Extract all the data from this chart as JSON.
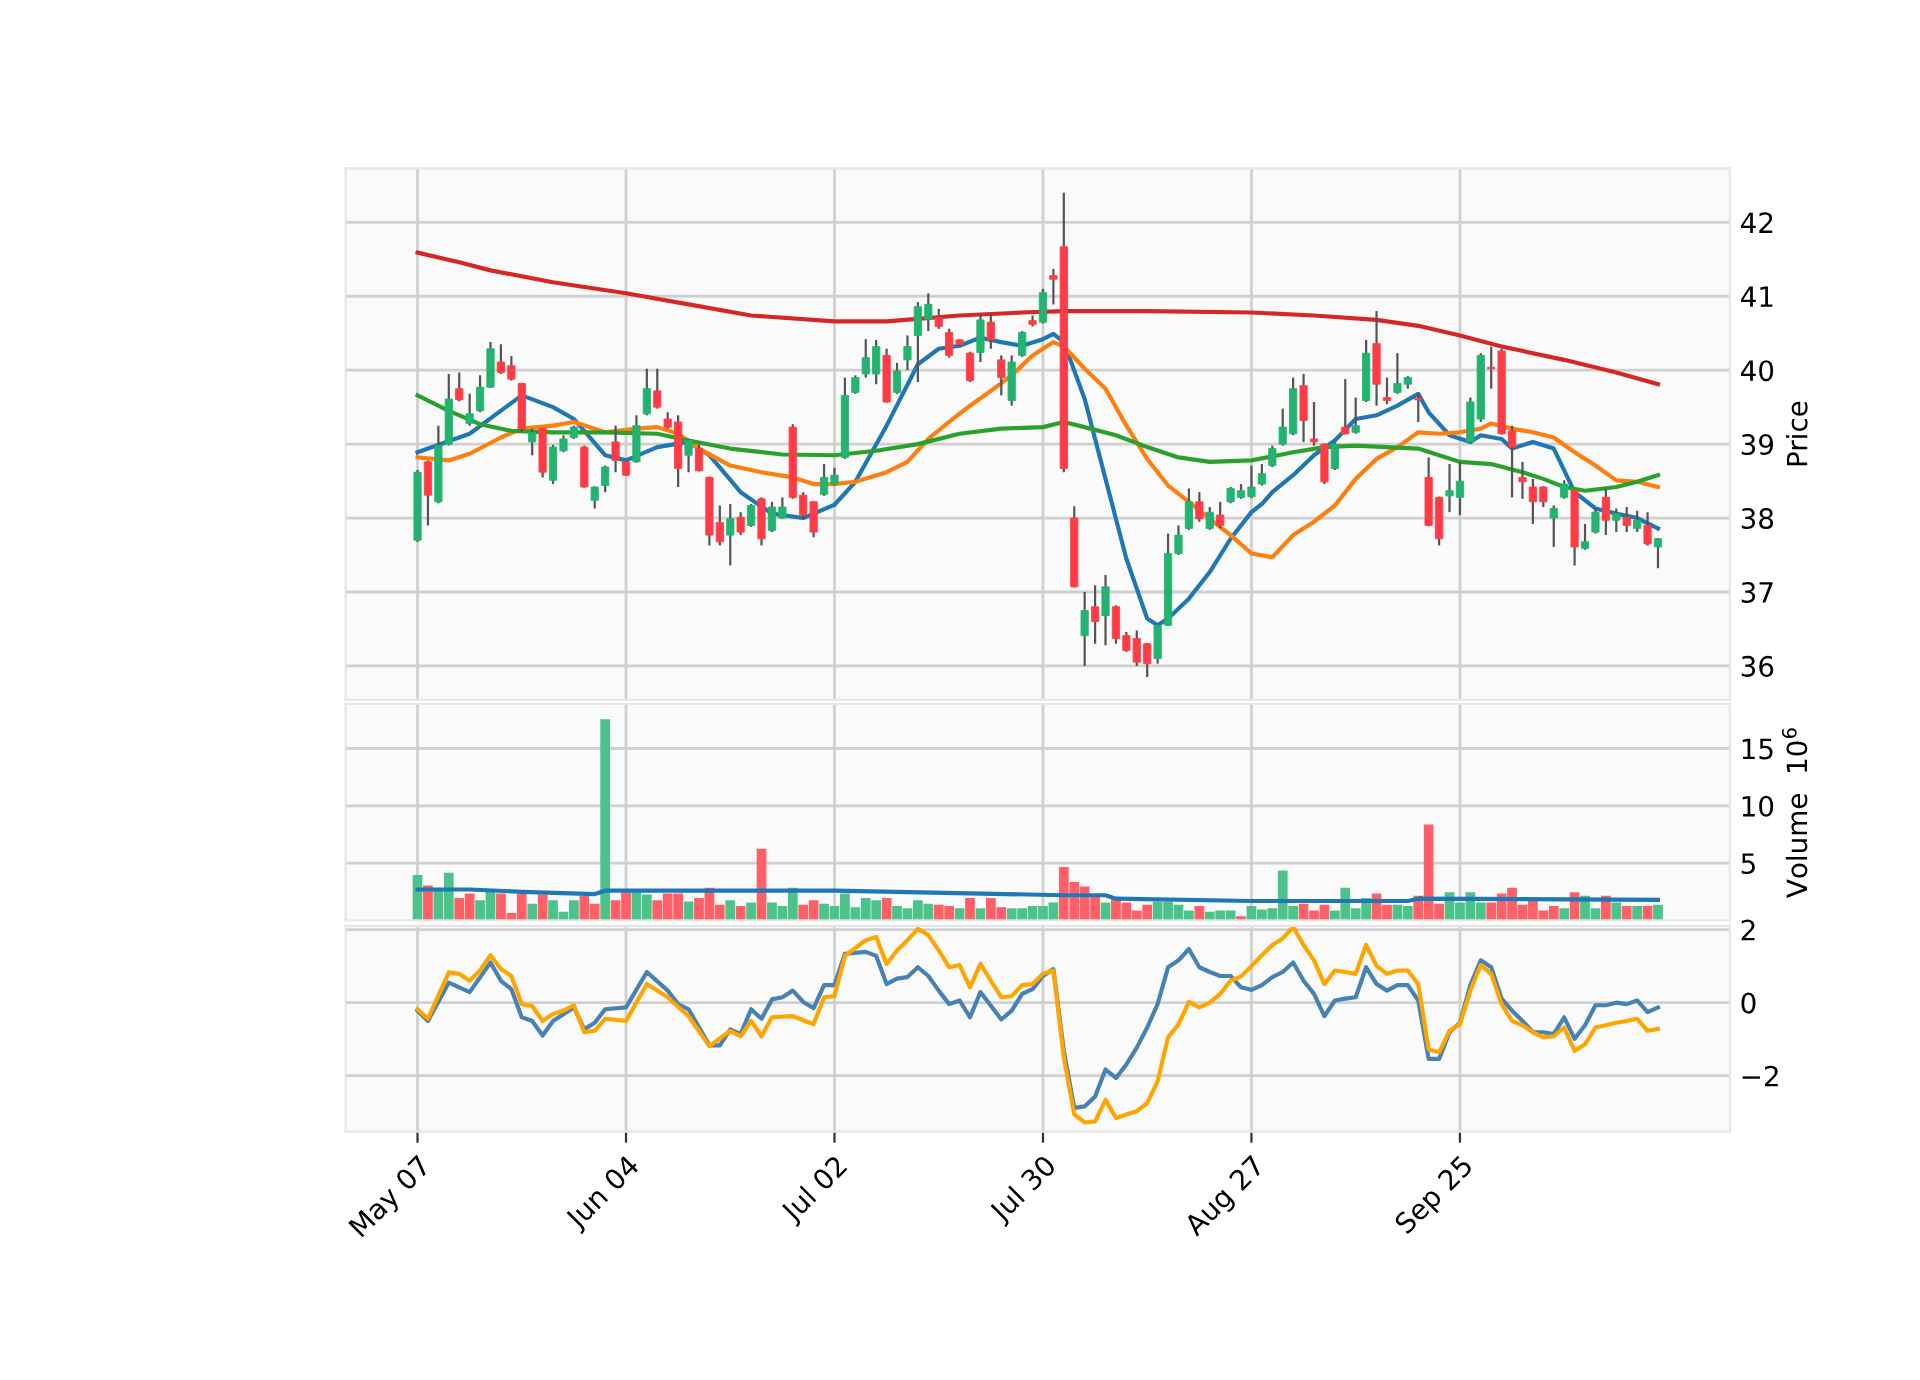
{
  "chart_data": [
    {
      "type": "candlestick",
      "ylabel": "Price",
      "tick_labels": "y",
      "grid": true,
      "categories": [
        null,
        null,
        null,
        null,
        null,
        null,
        null,
        null,
        null,
        null,
        null,
        null,
        null,
        null,
        null,
        null,
        null,
        null,
        null,
        null,
        null,
        null,
        null,
        null,
        null,
        null,
        null,
        null,
        null,
        null,
        null,
        null,
        null,
        null,
        null,
        null,
        null,
        null,
        null,
        null,
        null,
        null,
        null,
        null,
        null,
        null,
        null,
        null,
        null,
        null,
        null,
        null,
        null,
        null,
        null,
        null,
        null,
        null,
        null,
        null,
        null,
        null,
        null,
        null,
        null,
        null,
        null,
        null,
        null,
        null,
        null,
        null,
        null,
        null,
        null,
        null,
        null,
        null,
        null,
        null,
        null,
        null,
        null,
        null,
        null,
        null,
        null,
        null,
        null,
        null,
        null,
        null,
        null,
        null,
        null,
        null,
        null,
        null,
        null,
        null,
        null,
        null,
        null,
        null,
        null,
        null,
        null,
        null,
        null,
        null,
        null,
        null,
        null,
        null,
        null,
        null,
        null,
        null,
        null,
        null
      ],
      "ohlc": [
        [
          37.7,
          38.65,
          37.68,
          38.62
        ],
        [
          38.76,
          38.78,
          37.9,
          38.31
        ],
        [
          38.22,
          39.25,
          38.2,
          38.98
        ],
        [
          39.0,
          39.95,
          38.98,
          39.61
        ],
        [
          39.75,
          39.97,
          39.58,
          39.6
        ],
        [
          39.28,
          39.68,
          39.25,
          39.41
        ],
        [
          39.45,
          39.93,
          39.43,
          39.77
        ],
        [
          39.77,
          40.38,
          39.76,
          40.29
        ],
        [
          40.11,
          40.35,
          39.95,
          39.97
        ],
        [
          40.06,
          40.19,
          39.86,
          39.88
        ],
        [
          39.82,
          39.83,
          39.16,
          39.21
        ],
        [
          39.03,
          39.21,
          38.85,
          39.16
        ],
        [
          39.21,
          39.22,
          38.55,
          38.62
        ],
        [
          38.51,
          38.99,
          38.46,
          38.96
        ],
        [
          38.91,
          39.12,
          38.89,
          39.07
        ],
        [
          39.09,
          39.25,
          39.07,
          39.23
        ],
        [
          38.96,
          38.98,
          38.41,
          38.42
        ],
        [
          38.24,
          38.43,
          38.13,
          38.42
        ],
        [
          38.44,
          38.71,
          38.35,
          38.69
        ],
        [
          39.03,
          39.25,
          38.62,
          38.78
        ],
        [
          38.76,
          38.77,
          38.57,
          38.58
        ],
        [
          38.76,
          39.39,
          38.75,
          39.25
        ],
        [
          39.41,
          40.02,
          39.39,
          39.75
        ],
        [
          39.72,
          40.02,
          39.48,
          39.5
        ],
        [
          39.34,
          39.43,
          39.21,
          39.23
        ],
        [
          39.3,
          39.39,
          38.42,
          38.67
        ],
        [
          38.85,
          39.06,
          38.62,
          39.05
        ],
        [
          38.94,
          39.0,
          38.63,
          38.64
        ],
        [
          38.55,
          38.56,
          37.63,
          37.77
        ],
        [
          37.94,
          38.17,
          37.63,
          37.68
        ],
        [
          37.77,
          38.19,
          37.36,
          37.99
        ],
        [
          38.01,
          38.08,
          37.77,
          37.81
        ],
        [
          37.9,
          38.19,
          37.88,
          38.17
        ],
        [
          38.26,
          38.28,
          37.63,
          37.72
        ],
        [
          37.83,
          38.22,
          37.81,
          38.15
        ],
        [
          38.0,
          38.28,
          37.99,
          38.15
        ],
        [
          39.23,
          39.27,
          38.26,
          38.28
        ],
        [
          38.31,
          38.35,
          37.99,
          38.04
        ],
        [
          38.22,
          38.23,
          37.74,
          37.81
        ],
        [
          38.32,
          38.73,
          38.3,
          38.55
        ],
        [
          38.46,
          38.68,
          38.44,
          38.58
        ],
        [
          38.82,
          39.9,
          38.8,
          39.66
        ],
        [
          39.7,
          39.93,
          39.68,
          39.9
        ],
        [
          39.95,
          40.42,
          39.9,
          40.17
        ],
        [
          39.95,
          40.41,
          39.81,
          40.32
        ],
        [
          40.2,
          40.29,
          39.56,
          39.57
        ],
        [
          39.7,
          40.1,
          39.68,
          39.99
        ],
        [
          40.14,
          40.47,
          40.0,
          40.32
        ],
        [
          40.47,
          40.92,
          39.84,
          40.86
        ],
        [
          40.69,
          41.04,
          40.53,
          40.89
        ],
        [
          40.71,
          40.83,
          40.56,
          40.59
        ],
        [
          40.51,
          40.56,
          40.17,
          40.2
        ],
        [
          40.41,
          40.42,
          40.32,
          40.35
        ],
        [
          40.23,
          40.25,
          39.84,
          39.86
        ],
        [
          40.24,
          40.77,
          40.11,
          40.68
        ],
        [
          40.65,
          40.77,
          40.29,
          40.41
        ],
        [
          40.14,
          40.2,
          39.66,
          39.9
        ],
        [
          39.59,
          40.2,
          39.52,
          40.11
        ],
        [
          40.2,
          40.53,
          40.18,
          40.51
        ],
        [
          40.67,
          40.74,
          40.59,
          40.62
        ],
        [
          40.65,
          41.1,
          40.63,
          41.05
        ],
        [
          41.28,
          41.37,
          40.89,
          41.23
        ],
        [
          41.67,
          42.4,
          38.62,
          38.67
        ],
        [
          38.0,
          38.16,
          37.06,
          37.07
        ],
        [
          36.41,
          37.0,
          36.0,
          36.75
        ],
        [
          36.8,
          37.09,
          36.3,
          36.6
        ],
        [
          36.68,
          37.23,
          36.28,
          37.07
        ],
        [
          36.8,
          36.82,
          36.3,
          36.37
        ],
        [
          36.41,
          36.46,
          36.19,
          36.21
        ],
        [
          36.37,
          36.48,
          36.0,
          36.05
        ],
        [
          36.3,
          36.31,
          35.85,
          36.03
        ],
        [
          36.1,
          36.56,
          36.03,
          36.55
        ],
        [
          36.55,
          37.79,
          36.54,
          37.52
        ],
        [
          37.52,
          37.9,
          37.5,
          37.77
        ],
        [
          37.86,
          38.4,
          37.84,
          38.22
        ],
        [
          38.22,
          38.35,
          37.95,
          37.99
        ],
        [
          37.86,
          38.15,
          37.84,
          38.08
        ],
        [
          38.04,
          38.22,
          37.86,
          37.9
        ],
        [
          38.22,
          38.42,
          38.2,
          38.4
        ],
        [
          38.28,
          38.46,
          38.26,
          38.37
        ],
        [
          38.29,
          38.71,
          38.27,
          38.42
        ],
        [
          38.46,
          38.73,
          38.44,
          38.6
        ],
        [
          38.71,
          38.98,
          38.69,
          38.94
        ],
        [
          39.0,
          39.48,
          38.98,
          39.23
        ],
        [
          39.14,
          39.9,
          39.12,
          39.75
        ],
        [
          39.79,
          39.95,
          39.03,
          39.32
        ],
        [
          39.07,
          39.57,
          38.98,
          39.03
        ],
        [
          39.0,
          39.01,
          38.46,
          38.49
        ],
        [
          38.67,
          39.02,
          38.65,
          39.0
        ],
        [
          39.23,
          39.88,
          39.13,
          39.14
        ],
        [
          39.16,
          39.63,
          39.14,
          39.25
        ],
        [
          39.59,
          40.41,
          39.57,
          40.23
        ],
        [
          40.36,
          40.8,
          39.52,
          39.81
        ],
        [
          39.63,
          39.9,
          39.54,
          39.59
        ],
        [
          39.7,
          40.23,
          39.68,
          39.82
        ],
        [
          39.81,
          39.92,
          39.75,
          39.9
        ],
        [
          39.62,
          39.68,
          39.3,
          39.6
        ],
        [
          38.55,
          38.82,
          37.89,
          37.9
        ],
        [
          38.28,
          38.29,
          37.63,
          37.72
        ],
        [
          38.3,
          38.73,
          38.08,
          38.37
        ],
        [
          38.28,
          38.76,
          38.04,
          38.5
        ],
        [
          39.03,
          39.63,
          39.01,
          39.57
        ],
        [
          39.34,
          40.23,
          39.3,
          40.2
        ],
        [
          40.04,
          40.32,
          39.75,
          40.02
        ],
        [
          40.26,
          40.29,
          39.13,
          39.14
        ],
        [
          39.18,
          39.25,
          38.28,
          38.96
        ],
        [
          38.55,
          38.76,
          38.26,
          38.49
        ],
        [
          38.42,
          38.53,
          37.92,
          38.22
        ],
        [
          38.42,
          38.43,
          38.15,
          38.22
        ],
        [
          38.0,
          38.17,
          37.61,
          38.13
        ],
        [
          38.28,
          38.51,
          38.26,
          38.46
        ],
        [
          38.37,
          38.38,
          37.36,
          37.61
        ],
        [
          37.59,
          37.92,
          37.57,
          37.68
        ],
        [
          37.81,
          38.13,
          37.79,
          38.08
        ],
        [
          38.28,
          38.4,
          37.77,
          37.97
        ],
        [
          37.97,
          38.13,
          37.81,
          38.06
        ],
        [
          38.01,
          38.15,
          37.81,
          37.9
        ],
        [
          37.86,
          38.1,
          37.81,
          37.97
        ],
        [
          37.9,
          38.08,
          37.63,
          37.65
        ],
        [
          37.61,
          37.73,
          37.32,
          37.72
        ]
      ],
      "colors": [
        "#21b36f",
        "#ff3b46",
        "#21b36f",
        "#21b36f",
        "#ff3b46",
        "#21b36f",
        "#21b36f",
        "#21b36f",
        "#ff3b46",
        "#ff3b46",
        "#ff3b46",
        "#21b36f",
        "#ff3b46",
        "#21b36f",
        "#21b36f",
        "#21b36f",
        "#ff3b46",
        "#21b36f",
        "#21b36f",
        "#ff3b46",
        "#ff3b46",
        "#21b36f",
        "#21b36f",
        "#ff3b46",
        "#ff3b46",
        "#ff3b46",
        "#21b36f",
        "#ff3b46",
        "#ff3b46",
        "#ff3b46",
        "#21b36f",
        "#ff3b46",
        "#21b36f",
        "#ff3b46",
        "#21b36f",
        "#21b36f",
        "#ff3b46",
        "#ff3b46",
        "#ff3b46",
        "#21b36f",
        "#21b36f",
        "#21b36f",
        "#21b36f",
        "#21b36f",
        "#21b36f",
        "#ff3b46",
        "#21b36f",
        "#21b36f",
        "#21b36f",
        "#21b36f",
        "#ff3b46",
        "#ff3b46",
        "#ff3b46",
        "#ff3b46",
        "#21b36f",
        "#ff3b46",
        "#ff3b46",
        "#21b36f",
        "#21b36f",
        "#ff3b46",
        "#21b36f",
        "#ff3b46",
        "#ff3b46",
        "#ff3b46",
        "#21b36f",
        "#ff3b46",
        "#21b36f",
        "#ff3b46",
        "#ff3b46",
        "#ff3b46",
        "#ff3b46",
        "#21b36f",
        "#21b36f",
        "#21b36f",
        "#21b36f",
        "#ff3b46",
        "#21b36f",
        "#ff3b46",
        "#21b36f",
        "#21b36f",
        "#21b36f",
        "#21b36f",
        "#21b36f",
        "#21b36f",
        "#21b36f",
        "#ff3b46",
        "#ff3b46",
        "#ff3b46",
        "#21b36f",
        "#ff3b46",
        "#21b36f",
        "#21b36f",
        "#ff3b46",
        "#ff3b46",
        "#21b36f",
        "#21b36f",
        "#ff3b46",
        "#ff3b46",
        "#ff3b46",
        "#21b36f",
        "#21b36f",
        "#21b36f",
        "#21b36f",
        "#ff3b46",
        "#ff3b46",
        "#ff3b46",
        "#ff3b46",
        "#ff3b46",
        "#ff3b46",
        "#21b36f",
        "#21b36f",
        "#ff3b46",
        "#21b36f",
        "#21b36f",
        "#ff3b46",
        "#21b36f",
        "#ff3b46",
        "#21b36f",
        "#ff3b46",
        "#21b36f"
      ],
      "series": [
        {
          "type": "line",
          "color": "#1f77b4",
          "values": [
            38.89,
            null,
            null,
            null,
            null,
            39.14,
            null,
            null,
            null,
            null,
            39.66,
            null,
            null,
            39.5,
            null,
            39.34,
            null,
            null,
            38.85,
            null,
            38.78,
            null,
            null,
            38.96,
            null,
            null,
            39.03,
            null,
            38.85,
            null,
            null,
            38.35,
            null,
            null,
            38.06,
            null,
            null,
            38.0,
            null,
            null,
            38.18,
            null,
            38.49,
            null,
            null,
            39.25,
            null,
            null,
            40.08,
            null,
            40.29,
            null,
            40.33,
            null,
            40.44,
            null,
            40.38,
            null,
            40.33,
            null,
            40.42,
            40.49,
            40.38,
            null,
            39.61,
            null,
            38.53,
            null,
            37.45,
            null,
            36.64,
            36.55,
            36.64,
            null,
            36.91,
            null,
            37.27,
            null,
            37.72,
            null,
            38.08,
            38.19,
            38.35,
            null,
            38.58,
            null,
            38.85,
            null,
            39.05,
            null,
            39.34,
            null,
            39.39,
            null,
            39.52,
            null,
            39.68,
            39.43,
            null,
            39.12,
            null,
            39.03,
            39.12,
            null,
            39.07,
            38.94,
            null,
            39.03,
            null,
            38.94,
            null,
            38.35,
            null,
            38.13,
            null,
            38.06,
            null,
            38.0,
            null,
            37.86
          ]
        },
        {
          "type": "line",
          "color": "#ff7f0e",
          "values": [
            38.82,
            null,
            null,
            38.78,
            null,
            38.87,
            null,
            null,
            39.09,
            null,
            39.21,
            null,
            null,
            39.25,
            null,
            39.3,
            null,
            null,
            39.16,
            null,
            null,
            39.21,
            null,
            39.23,
            null,
            39.14,
            null,
            38.94,
            null,
            null,
            38.71,
            null,
            null,
            38.62,
            null,
            null,
            38.55,
            null,
            38.46,
            null,
            38.46,
            null,
            38.49,
            null,
            null,
            38.62,
            null,
            38.76,
            null,
            39.07,
            null,
            39.3,
            null,
            39.52,
            null,
            39.72,
            null,
            39.93,
            null,
            40.2,
            null,
            40.38,
            40.32,
            null,
            40.02,
            null,
            39.75,
            null,
            39.25,
            null,
            38.8,
            null,
            38.44,
            null,
            38.22,
            null,
            37.99,
            null,
            37.77,
            null,
            37.52,
            null,
            37.47,
            null,
            37.77,
            null,
            37.95,
            null,
            38.17,
            null,
            38.53,
            null,
            38.8,
            null,
            38.96,
            null,
            39.16,
            null,
            39.14,
            null,
            39.16,
            null,
            39.21,
            39.28,
            null,
            39.21,
            null,
            39.16,
            null,
            39.09,
            null,
            38.89,
            null,
            38.71,
            null,
            38.51,
            null,
            38.49,
            null,
            38.42
          ]
        },
        {
          "type": "line",
          "color": "#2ca02c",
          "values": [
            39.66,
            null,
            null,
            39.45,
            null,
            null,
            39.27,
            null,
            null,
            39.18,
            null,
            null,
            null,
            39.16,
            null,
            null,
            null,
            null,
            39.16,
            null,
            null,
            null,
            null,
            39.14,
            null,
            null,
            39.05,
            null,
            null,
            null,
            38.94,
            null,
            null,
            null,
            null,
            38.86,
            null,
            null,
            null,
            null,
            38.85,
            null,
            null,
            null,
            38.91,
            null,
            null,
            null,
            39.0,
            null,
            null,
            null,
            39.14,
            null,
            null,
            null,
            39.21,
            null,
            null,
            null,
            39.23,
            null,
            39.3,
            null,
            39.23,
            null,
            null,
            39.12,
            null,
            null,
            38.96,
            null,
            null,
            38.82,
            null,
            null,
            38.76,
            null,
            null,
            null,
            38.78,
            null,
            null,
            null,
            38.89,
            null,
            null,
            38.96,
            null,
            null,
            38.98,
            null,
            null,
            38.96,
            null,
            null,
            38.94,
            null,
            38.85,
            null,
            38.76,
            null,
            null,
            38.73,
            null,
            null,
            38.62,
            null,
            38.53,
            null,
            38.42,
            null,
            38.37,
            null,
            null,
            38.42,
            null,
            38.49,
            null,
            38.58
          ]
        },
        {
          "type": "line",
          "color": "#d62728",
          "values": [
            41.59,
            null,
            null,
            null,
            41.46,
            null,
            null,
            41.35,
            null,
            null,
            null,
            null,
            null,
            41.19,
            null,
            null,
            null,
            null,
            null,
            null,
            41.04,
            null,
            null,
            null,
            null,
            null,
            40.89,
            null,
            null,
            null,
            null,
            null,
            40.74,
            null,
            null,
            null,
            null,
            null,
            null,
            null,
            40.66,
            null,
            null,
            null,
            null,
            40.66,
            null,
            null,
            null,
            null,
            null,
            null,
            40.74,
            null,
            null,
            null,
            null,
            null,
            40.78,
            null,
            null,
            null,
            40.8,
            null,
            null,
            null,
            null,
            null,
            null,
            null,
            40.8,
            null,
            null,
            null,
            null,
            null,
            null,
            null,
            null,
            null,
            40.78,
            null,
            null,
            null,
            null,
            null,
            40.74,
            null,
            null,
            null,
            null,
            null,
            40.68,
            null,
            null,
            null,
            40.6,
            null,
            null,
            null,
            40.47,
            null,
            null,
            null,
            40.32,
            null,
            null,
            null,
            null,
            null,
            40.14,
            null,
            null,
            null,
            null,
            39.97,
            null,
            null,
            null,
            39.81
          ]
        }
      ],
      "ylim": [
        35.54,
        42.73
      ],
      "yticks": [
        36,
        37,
        38,
        39,
        40,
        41,
        42
      ]
    },
    {
      "type": "bar",
      "ylabel": "Volume  10$^{6}$",
      "tick_labels": "y",
      "grid": true,
      "categories": [
        null,
        null,
        null,
        null,
        null,
        null,
        null,
        null,
        null,
        null,
        null,
        null,
        null,
        null,
        null,
        null,
        null,
        null,
        null,
        null,
        null,
        null,
        null,
        null,
        null,
        null,
        null,
        null,
        null,
        null,
        null,
        null,
        null,
        null,
        null,
        null,
        null,
        null,
        null,
        null,
        null,
        null,
        null,
        null,
        null,
        null,
        null,
        null,
        null,
        null,
        null,
        null,
        null,
        null,
        null,
        null,
        null,
        null,
        null,
        null,
        null,
        null,
        null,
        null,
        null,
        null,
        null,
        null,
        null,
        null,
        null,
        null,
        null,
        null,
        null,
        null,
        null,
        null,
        null,
        null,
        null,
        null,
        null,
        null,
        null,
        null,
        null,
        null,
        null,
        null,
        null,
        null,
        null,
        null,
        null,
        null,
        null,
        null,
        null,
        null,
        null,
        null,
        null,
        null,
        null,
        null,
        null,
        null,
        null,
        null,
        null,
        null,
        null,
        null,
        null,
        null,
        null,
        null,
        null,
        null
      ],
      "values": [
        3.9,
        3.0,
        2.6,
        4.1,
        1.9,
        2.3,
        1.7,
        2.6,
        2.3,
        0.6,
        2.3,
        1.4,
        2.2,
        1.7,
        0.7,
        1.7,
        2.1,
        1.4,
        17.5,
        1.7,
        2.4,
        2.4,
        2.2,
        1.7,
        2.3,
        2.3,
        1.6,
        1.9,
        2.8,
        1.3,
        1.7,
        1.2,
        1.5,
        6.2,
        1.5,
        1.2,
        2.8,
        1.3,
        1.7,
        1.4,
        1.2,
        2.3,
        1.1,
        1.9,
        1.7,
        1.9,
        1.2,
        1.0,
        1.7,
        1.4,
        1.3,
        1.2,
        1.0,
        1.9,
        1.0,
        1.9,
        1.1,
        1.0,
        1.0,
        1.2,
        1.2,
        1.5,
        4.6,
        3.3,
        2.9,
        2.0,
        1.5,
        1.9,
        1.5,
        0.8,
        1.3,
        1.6,
        1.6,
        1.3,
        0.8,
        1.2,
        0.7,
        0.8,
        0.8,
        0.3,
        1.2,
        0.9,
        1.0,
        4.3,
        1.2,
        1.4,
        0.8,
        1.3,
        0.8,
        2.8,
        1.0,
        1.9,
        2.3,
        1.3,
        1.3,
        1.2,
        2.1,
        8.3,
        1.4,
        2.4,
        1.5,
        2.4,
        1.5,
        1.5,
        2.3,
        2.8,
        1.3,
        1.7,
        0.8,
        1.2,
        1.0,
        2.4,
        2.1,
        1.0,
        2.1,
        1.5,
        1.2,
        1.2,
        1.2,
        1.3
      ],
      "colors": [
        "#4cc38a",
        "#ff6068",
        "#4cc38a",
        "#4cc38a",
        "#ff6068",
        "#ff6068",
        "#4cc38a",
        "#4cc38a",
        "#ff6068",
        "#ff6068",
        "#ff6068",
        "#4cc38a",
        "#ff6068",
        "#4cc38a",
        "#4cc38a",
        "#4cc38a",
        "#ff6068",
        "#ff6068",
        "#4cc38a",
        "#ff6068",
        "#ff6068",
        "#4cc38a",
        "#4cc38a",
        "#ff6068",
        "#ff6068",
        "#ff6068",
        "#4cc38a",
        "#ff6068",
        "#ff6068",
        "#ff6068",
        "#4cc38a",
        "#ff6068",
        "#4cc38a",
        "#ff6068",
        "#4cc38a",
        "#4cc38a",
        "#4cc38a",
        "#ff6068",
        "#ff6068",
        "#4cc38a",
        "#4cc38a",
        "#4cc38a",
        "#4cc38a",
        "#4cc38a",
        "#4cc38a",
        "#ff6068",
        "#4cc38a",
        "#4cc38a",
        "#4cc38a",
        "#4cc38a",
        "#ff6068",
        "#ff6068",
        "#4cc38a",
        "#ff6068",
        "#4cc38a",
        "#ff6068",
        "#ff6068",
        "#4cc38a",
        "#4cc38a",
        "#4cc38a",
        "#4cc38a",
        "#4cc38a",
        "#ff6068",
        "#ff6068",
        "#ff6068",
        "#ff6068",
        "#4cc38a",
        "#ff6068",
        "#ff6068",
        "#ff6068",
        "#ff6068",
        "#4cc38a",
        "#4cc38a",
        "#4cc38a",
        "#4cc38a",
        "#ff6068",
        "#4cc38a",
        "#4cc38a",
        "#4cc38a",
        "#ff6068",
        "#4cc38a",
        "#4cc38a",
        "#4cc38a",
        "#4cc38a",
        "#4cc38a",
        "#ff6068",
        "#ff6068",
        "#ff6068",
        "#4cc38a",
        "#4cc38a",
        "#4cc38a",
        "#4cc38a",
        "#ff6068",
        "#ff6068",
        "#4cc38a",
        "#4cc38a",
        "#ff6068",
        "#ff6068",
        "#ff6068",
        "#4cc38a",
        "#4cc38a",
        "#4cc38a",
        "#4cc38a",
        "#ff6068",
        "#ff6068",
        "#ff6068",
        "#ff6068",
        "#ff6068",
        "#ff6068",
        "#ff6068",
        "#4cc38a",
        "#ff6068",
        "#4cc38a",
        "#4cc38a",
        "#ff6068",
        "#4cc38a",
        "#ff6068",
        "#4cc38a",
        "#ff6068",
        "#4cc38a"
      ],
      "series": [
        {
          "type": "line",
          "color": "#1f77b4",
          "values": [
            2.7,
            null,
            null,
            null,
            null,
            2.7,
            null,
            null,
            null,
            null,
            2.5,
            null,
            null,
            null,
            null,
            null,
            null,
            2.3,
            2.6,
            null,
            null,
            null,
            null,
            null,
            null,
            null,
            null,
            null,
            null,
            null,
            null,
            null,
            null,
            null,
            null,
            null,
            null,
            null,
            null,
            null,
            2.6,
            null,
            null,
            null,
            null,
            null,
            null,
            null,
            null,
            null,
            null,
            null,
            null,
            null,
            null,
            null,
            null,
            null,
            null,
            null,
            null,
            null,
            2.2,
            null,
            null,
            null,
            2.2,
            1.9,
            null,
            null,
            null,
            null,
            null,
            null,
            null,
            null,
            null,
            null,
            null,
            null,
            1.7,
            null,
            null,
            null,
            null,
            null,
            null,
            null,
            null,
            null,
            null,
            null,
            null,
            null,
            null,
            1.7,
            1.9,
            null,
            null,
            null,
            null,
            null,
            null,
            null,
            null,
            null,
            null,
            null,
            null,
            null,
            null,
            null,
            null,
            null,
            null,
            null,
            null,
            null,
            null,
            1.8
          ]
        }
      ],
      "ylim": [
        0,
        18.9
      ],
      "yticks": [
        5,
        10,
        15
      ]
    },
    {
      "type": "line",
      "grid": true,
      "categories": [
        "May 07",
        null,
        null,
        null,
        null,
        null,
        null,
        null,
        null,
        null,
        null,
        null,
        null,
        null,
        null,
        null,
        null,
        null,
        null,
        null,
        "Jun 04",
        null,
        null,
        null,
        null,
        null,
        null,
        null,
        null,
        null,
        null,
        null,
        null,
        null,
        null,
        null,
        null,
        null,
        null,
        null,
        "Jul 02",
        null,
        null,
        null,
        null,
        null,
        null,
        null,
        null,
        null,
        null,
        null,
        null,
        null,
        null,
        null,
        null,
        null,
        null,
        null,
        "Jul 30",
        null,
        null,
        null,
        null,
        null,
        null,
        null,
        null,
        null,
        null,
        null,
        null,
        null,
        null,
        null,
        null,
        null,
        null,
        null,
        "Aug 27",
        null,
        null,
        null,
        null,
        null,
        null,
        null,
        null,
        null,
        null,
        null,
        null,
        null,
        null,
        null,
        null,
        null,
        null,
        null,
        "Sep 25",
        null,
        null,
        null,
        null,
        null,
        null,
        null,
        null,
        null,
        null,
        null,
        null,
        null,
        null,
        null,
        null,
        null,
        null,
        null
      ],
      "series": [
        {
          "color": "#4682b4",
          "values": [
            -0.22,
            -0.5,
            null,
            0.55,
            null,
            0.29,
            null,
            1.1,
            0.6,
            0.37,
            -0.4,
            -0.5,
            -0.9,
            -0.5,
            null,
            -0.13,
            -0.73,
            -0.55,
            -0.18,
            null,
            -0.13,
            null,
            0.84,
            null,
            0.33,
            -0.04,
            -0.18,
            null,
            -1.17,
            -1.17,
            -0.73,
            -0.86,
            -0.18,
            -0.44,
            0.09,
            0.15,
            0.33,
            0.02,
            -0.15,
            0.48,
            0.48,
            1.34,
            null,
            1.39,
            1.28,
            0.51,
            0.66,
            0.7,
            0.97,
            0.73,
            0.33,
            -0.04,
            0.06,
            -0.4,
            0.29,
            null,
            -0.46,
            -0.22,
            0.24,
            0.37,
            0.73,
            0.92,
            -1.32,
            -2.88,
            -2.84,
            -2.57,
            -1.83,
            -2.06,
            -1.69,
            -1.23,
            -0.68,
            -0.04,
            0.97,
            1.16,
            1.47,
            0.97,
            0.84,
            0.73,
            0.73,
            0.42,
            0.35,
            0.48,
            0.7,
            0.84,
            1.1,
            0.6,
            0.24,
            -0.37,
            0.06,
            0.11,
            0.15,
            0.97,
            0.51,
            0.33,
            0.48,
            0.48,
            0.06,
            -1.54,
            -1.54,
            -0.81,
            -0.55,
            0.48,
            1.16,
            0.97,
            0.11,
            -0.22,
            -0.5,
            -0.81,
            -0.81,
            -0.86,
            -0.4,
            -0.99,
            -0.62,
            -0.07,
            -0.07,
            0.0,
            -0.04,
            0.06,
            -0.26,
            -0.13
          ]
        },
        {
          "color": "#ffa500",
          "values": [
            -0.18,
            -0.44,
            null,
            0.83,
            0.79,
            0.6,
            0.88,
            1.3,
            0.92,
            0.73,
            -0.04,
            -0.09,
            -0.5,
            -0.31,
            -0.22,
            -0.07,
            -0.81,
            -0.77,
            -0.44,
            null,
            -0.5,
            null,
            0.51,
            null,
            0.15,
            null,
            -0.37,
            null,
            -1.19,
            null,
            -0.77,
            -0.92,
            -0.5,
            -0.92,
            -0.4,
            null,
            -0.37,
            null,
            -0.59,
            0.15,
            0.18,
            1.28,
            null,
            1.71,
            1.8,
            1.06,
            1.43,
            1.71,
            2.02,
            1.85,
            1.43,
            0.97,
            1.03,
            0.42,
            1.06,
            0.6,
            0.15,
            0.18,
            0.48,
            0.51,
            0.79,
            0.88,
            -1.5,
            -3.06,
            -3.28,
            -3.25,
            -2.66,
            -3.16,
            -3.06,
            -2.97,
            -2.75,
            -2.15,
            -0.95,
            -0.59,
            0.02,
            -0.13,
            0.0,
            0.24,
            0.6,
            0.72,
            1.0,
            1.3,
            1.58,
            1.76,
            2.07,
            1.58,
            1.16,
            0.51,
            0.88,
            0.84,
            0.79,
            1.58,
            1.01,
            0.79,
            0.88,
            0.88,
            0.51,
            -1.28,
            -1.36,
            -0.77,
            -0.59,
            0.33,
            1.03,
            0.79,
            -0.04,
            -0.5,
            -0.62,
            -0.81,
            -0.95,
            -0.92,
            -0.68,
            -1.32,
            -1.14,
            -0.68,
            -0.62,
            -0.55,
            -0.5,
            -0.44,
            -0.77,
            -0.72
          ]
        }
      ],
      "ylim": [
        -3.53,
        2.1
      ],
      "yticks": [
        2,
        0,
        {
          "value": -2,
          "label": "−2"
        }
      ]
    }
  ]
}
